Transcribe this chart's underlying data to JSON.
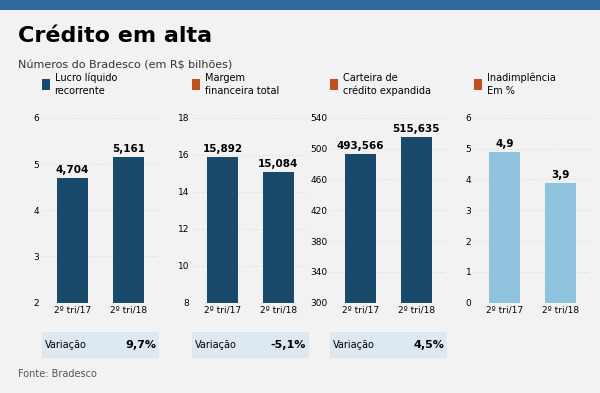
{
  "title": "Crédito em alta",
  "subtitle": "Números do Bradesco (em R$ bilhões)",
  "footer": "Fonte: Bradesco",
  "background_color": "#f2f2f2",
  "charts": [
    {
      "label": "Lucro líquido\nrecorrente",
      "legend_color": "#1a4a6b",
      "categories": [
        "2º tri/17",
        "2º tri/18"
      ],
      "values": [
        4.704,
        5.161
      ],
      "bar_color": "#1a4a6b",
      "ylim": [
        2,
        6
      ],
      "yticks": [
        2,
        3,
        4,
        5,
        6
      ],
      "value_labels": [
        "4,704",
        "5,161"
      ],
      "variacao": "9,7%",
      "variacao_label": "Variação"
    },
    {
      "label": "Margem\nfinanceira total",
      "legend_color": "#c05020",
      "categories": [
        "2º tri/17",
        "2º tri/18"
      ],
      "values": [
        15.892,
        15.084
      ],
      "bar_color": "#1a4a6b",
      "ylim": [
        8,
        18
      ],
      "yticks": [
        8,
        10,
        12,
        14,
        16,
        18
      ],
      "value_labels": [
        "15,892",
        "15,084"
      ],
      "variacao": "-5,1%",
      "variacao_label": "Variação"
    },
    {
      "label": "Carteira de\ncrédito expandida",
      "legend_color": "#c05020",
      "categories": [
        "2º tri/17",
        "2º tri/18"
      ],
      "values": [
        493.566,
        515.635
      ],
      "bar_color": "#1a4a6b",
      "ylim": [
        300,
        540
      ],
      "yticks": [
        300,
        340,
        380,
        420,
        460,
        500,
        540
      ],
      "value_labels": [
        "493,566",
        "515,635"
      ],
      "variacao": "4,5%",
      "variacao_label": "Variação"
    },
    {
      "label": "Inadimplência\nEm %",
      "legend_color": "#c05020",
      "categories": [
        "2º tri/17",
        "2º tri/18"
      ],
      "values": [
        4.9,
        3.9
      ],
      "bar_color": "#90c4de",
      "ylim": [
        0,
        6
      ],
      "yticks": [
        0,
        1,
        2,
        3,
        4,
        5,
        6
      ],
      "value_labels": [
        "4,9",
        "3,9"
      ],
      "variacao": null,
      "variacao_label": null
    }
  ],
  "legend_box_colors": [
    "#1a4a6b",
    "#c05020",
    "#c05020",
    "#c05020"
  ],
  "variacao_bg": "#dde8f0",
  "grid_color": "#cccccc",
  "top_bar_color": "#2f6a9e"
}
